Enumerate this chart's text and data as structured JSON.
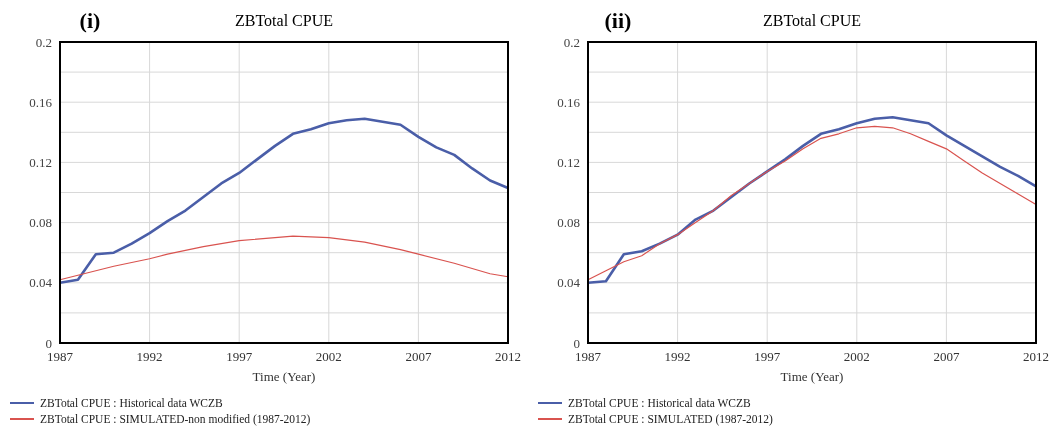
{
  "chart_data": [
    {
      "type": "line",
      "title": "ZBTotal CPUE",
      "annotations": [
        "(i)"
      ],
      "xlabel": "Time (Year)",
      "xlim": [
        1987,
        2012
      ],
      "xticks": [
        1987,
        1992,
        1997,
        2002,
        2007,
        2012
      ],
      "ylim": [
        0,
        0.2
      ],
      "yticks": [
        0,
        {
          "value": 0.02,
          "label": null
        },
        0.04,
        {
          "value": 0.06,
          "label": null
        },
        0.08,
        {
          "value": 0.1,
          "label": null
        },
        0.12,
        {
          "value": 0.14,
          "label": null
        },
        0.16,
        {
          "value": 0.18,
          "label": null
        },
        0.2
      ],
      "grid": true,
      "legend": "bottom",
      "marker": "none",
      "line_style": "solid",
      "series": [
        {
          "name": "ZBTotal CPUE : Historical data WCZB",
          "color": "#4a5ea8",
          "x": [
            1987,
            1988,
            1989,
            1990,
            1991,
            1992,
            1993,
            1994,
            1995,
            1996,
            1997,
            1998,
            1999,
            2000,
            2001,
            2002,
            2003,
            2004,
            2005,
            2006,
            2007,
            2008,
            2009,
            2010,
            2011,
            2012
          ],
          "values": [
            0.04,
            0.042,
            0.059,
            0.06,
            0.066,
            0.073,
            0.081,
            0.088,
            0.097,
            0.106,
            0.113,
            0.122,
            0.131,
            0.139,
            0.142,
            0.146,
            0.148,
            0.149,
            0.147,
            0.145,
            0.137,
            0.13,
            0.125,
            0.116,
            0.108,
            0.103
          ]
        },
        {
          "name": "ZBTotal CPUE : SIMULATED-non modified (1987-2012)",
          "color": "#d9534f",
          "x": [
            1987,
            1988,
            1990,
            1992,
            1993,
            1995,
            1997,
            1999,
            2000,
            2002,
            2004,
            2006,
            2007,
            2009,
            2011,
            2012
          ],
          "values": [
            0.042,
            0.045,
            0.051,
            0.056,
            0.059,
            0.064,
            0.068,
            0.07,
            0.071,
            0.07,
            0.067,
            0.062,
            0.059,
            0.053,
            0.046,
            0.044
          ]
        }
      ]
    },
    {
      "type": "line",
      "title": "ZBTotal CPUE",
      "annotations": [
        "(ii)"
      ],
      "xlabel": "Time (Year)",
      "xlim": [
        1987,
        2012
      ],
      "xticks": [
        1987,
        1992,
        1997,
        2002,
        2007,
        2012
      ],
      "ylim": [
        0,
        0.2
      ],
      "yticks": [
        0,
        {
          "value": 0.02,
          "label": null
        },
        0.04,
        {
          "value": 0.06,
          "label": null
        },
        0.08,
        {
          "value": 0.1,
          "label": null
        },
        0.12,
        {
          "value": 0.14,
          "label": null
        },
        0.16,
        {
          "value": 0.18,
          "label": null
        },
        0.2
      ],
      "grid": true,
      "legend": "bottom",
      "marker": "none",
      "line_style": "solid",
      "series": [
        {
          "name": "ZBTotal CPUE : Historical data WCZB",
          "color": "#4a5ea8",
          "x": [
            1987,
            1988,
            1989,
            1990,
            1991,
            1992,
            1993,
            1994,
            1995,
            1996,
            1997,
            1998,
            1999,
            2000,
            2001,
            2002,
            2003,
            2004,
            2005,
            2006,
            2007,
            2008,
            2009,
            2010,
            2011,
            2012
          ],
          "values": [
            0.04,
            0.041,
            0.059,
            0.061,
            0.066,
            0.072,
            0.082,
            0.088,
            0.097,
            0.106,
            0.114,
            0.122,
            0.131,
            0.139,
            0.142,
            0.146,
            0.149,
            0.15,
            0.148,
            0.146,
            0.138,
            0.131,
            0.124,
            0.117,
            0.111,
            0.104
          ]
        },
        {
          "name": "ZBTotal CPUE : SIMULATED (1987-2012)",
          "color": "#d9534f",
          "x": [
            1987,
            1988,
            1989,
            1990,
            1991,
            1992,
            1993,
            1994,
            1995,
            1996,
            1997,
            1998,
            1999,
            2000,
            2001,
            2002,
            2003,
            2004,
            2005,
            2006,
            2007,
            2008,
            2009,
            2010,
            2011,
            2012
          ],
          "values": [
            0.042,
            0.048,
            0.054,
            0.058,
            0.066,
            0.072,
            0.08,
            0.088,
            0.098,
            0.106,
            0.114,
            0.121,
            0.129,
            0.136,
            0.139,
            0.143,
            0.144,
            0.143,
            0.139,
            0.134,
            0.129,
            0.121,
            0.113,
            0.106,
            0.099,
            0.092
          ]
        }
      ]
    }
  ]
}
